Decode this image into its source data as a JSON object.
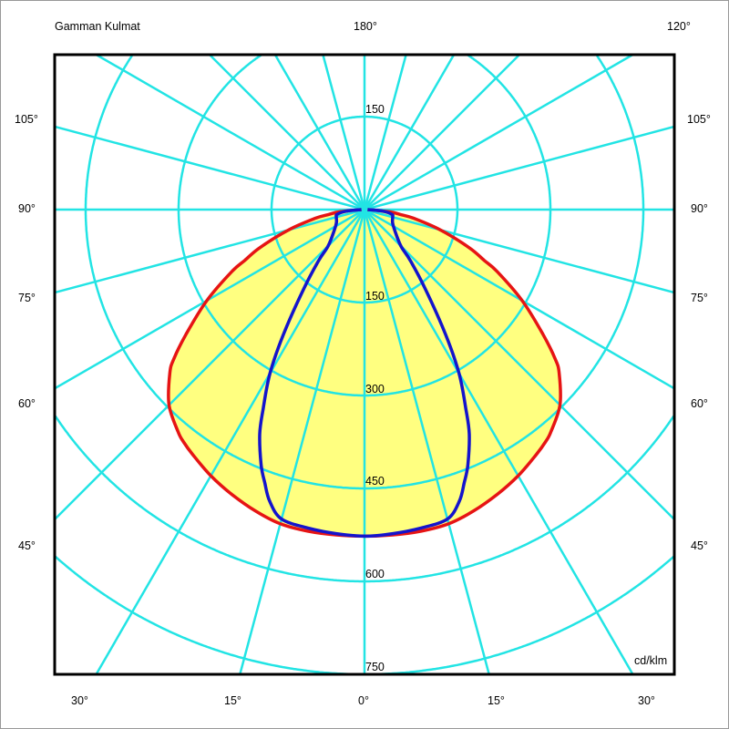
{
  "chart_data": {
    "type": "polar",
    "title": "Gamman Kulmat",
    "unit": "cd/klm",
    "radial_ticks": [
      150,
      300,
      450,
      600,
      750
    ],
    "radial_grid_max": 1050,
    "angle_grid_step_deg": 15,
    "grid": true,
    "colors": {
      "grid": "#22e4e4",
      "fill": "#ffff80",
      "red": "#e61414",
      "blue": "#1414cc",
      "frame": "#000000"
    },
    "angle_labels": {
      "top_center": "180°",
      "top_right": "120°",
      "left": [
        "105°",
        "90°",
        "75°",
        "60°",
        "45°"
      ],
      "right": [
        "105°",
        "90°",
        "75°",
        "60°",
        "45°"
      ],
      "bottom": [
        "30°",
        "15°",
        "0°",
        "15°",
        "30°"
      ]
    },
    "top_radial_label": "150",
    "series": [
      {
        "color": "#e61414",
        "fill": true,
        "angles": [
          0,
          5,
          10,
          15,
          20,
          25,
          30,
          35,
          38,
          40,
          45,
          50,
          52,
          55,
          60,
          65,
          67,
          70,
          75,
          80,
          82,
          85,
          90
        ],
        "values": [
          527,
          527,
          527,
          525,
          517,
          507,
          496,
          483,
          475,
          468,
          446,
          410,
          390,
          352,
          294,
          236,
          210,
          180,
          127,
          80,
          60,
          40,
          5
        ]
      },
      {
        "color": "#1414cc",
        "fill": false,
        "angles": [
          0,
          5,
          10,
          15,
          18,
          20,
          22,
          25,
          27,
          30,
          33,
          37.5,
          42,
          45,
          55,
          65,
          75,
          80,
          85,
          90
        ],
        "values": [
          527,
          525,
          522,
          517,
          495,
          470,
          445,
          400,
          360,
          305,
          240,
          161,
          110,
          83,
          60,
          50,
          47,
          45,
          30,
          5
        ]
      }
    ]
  }
}
